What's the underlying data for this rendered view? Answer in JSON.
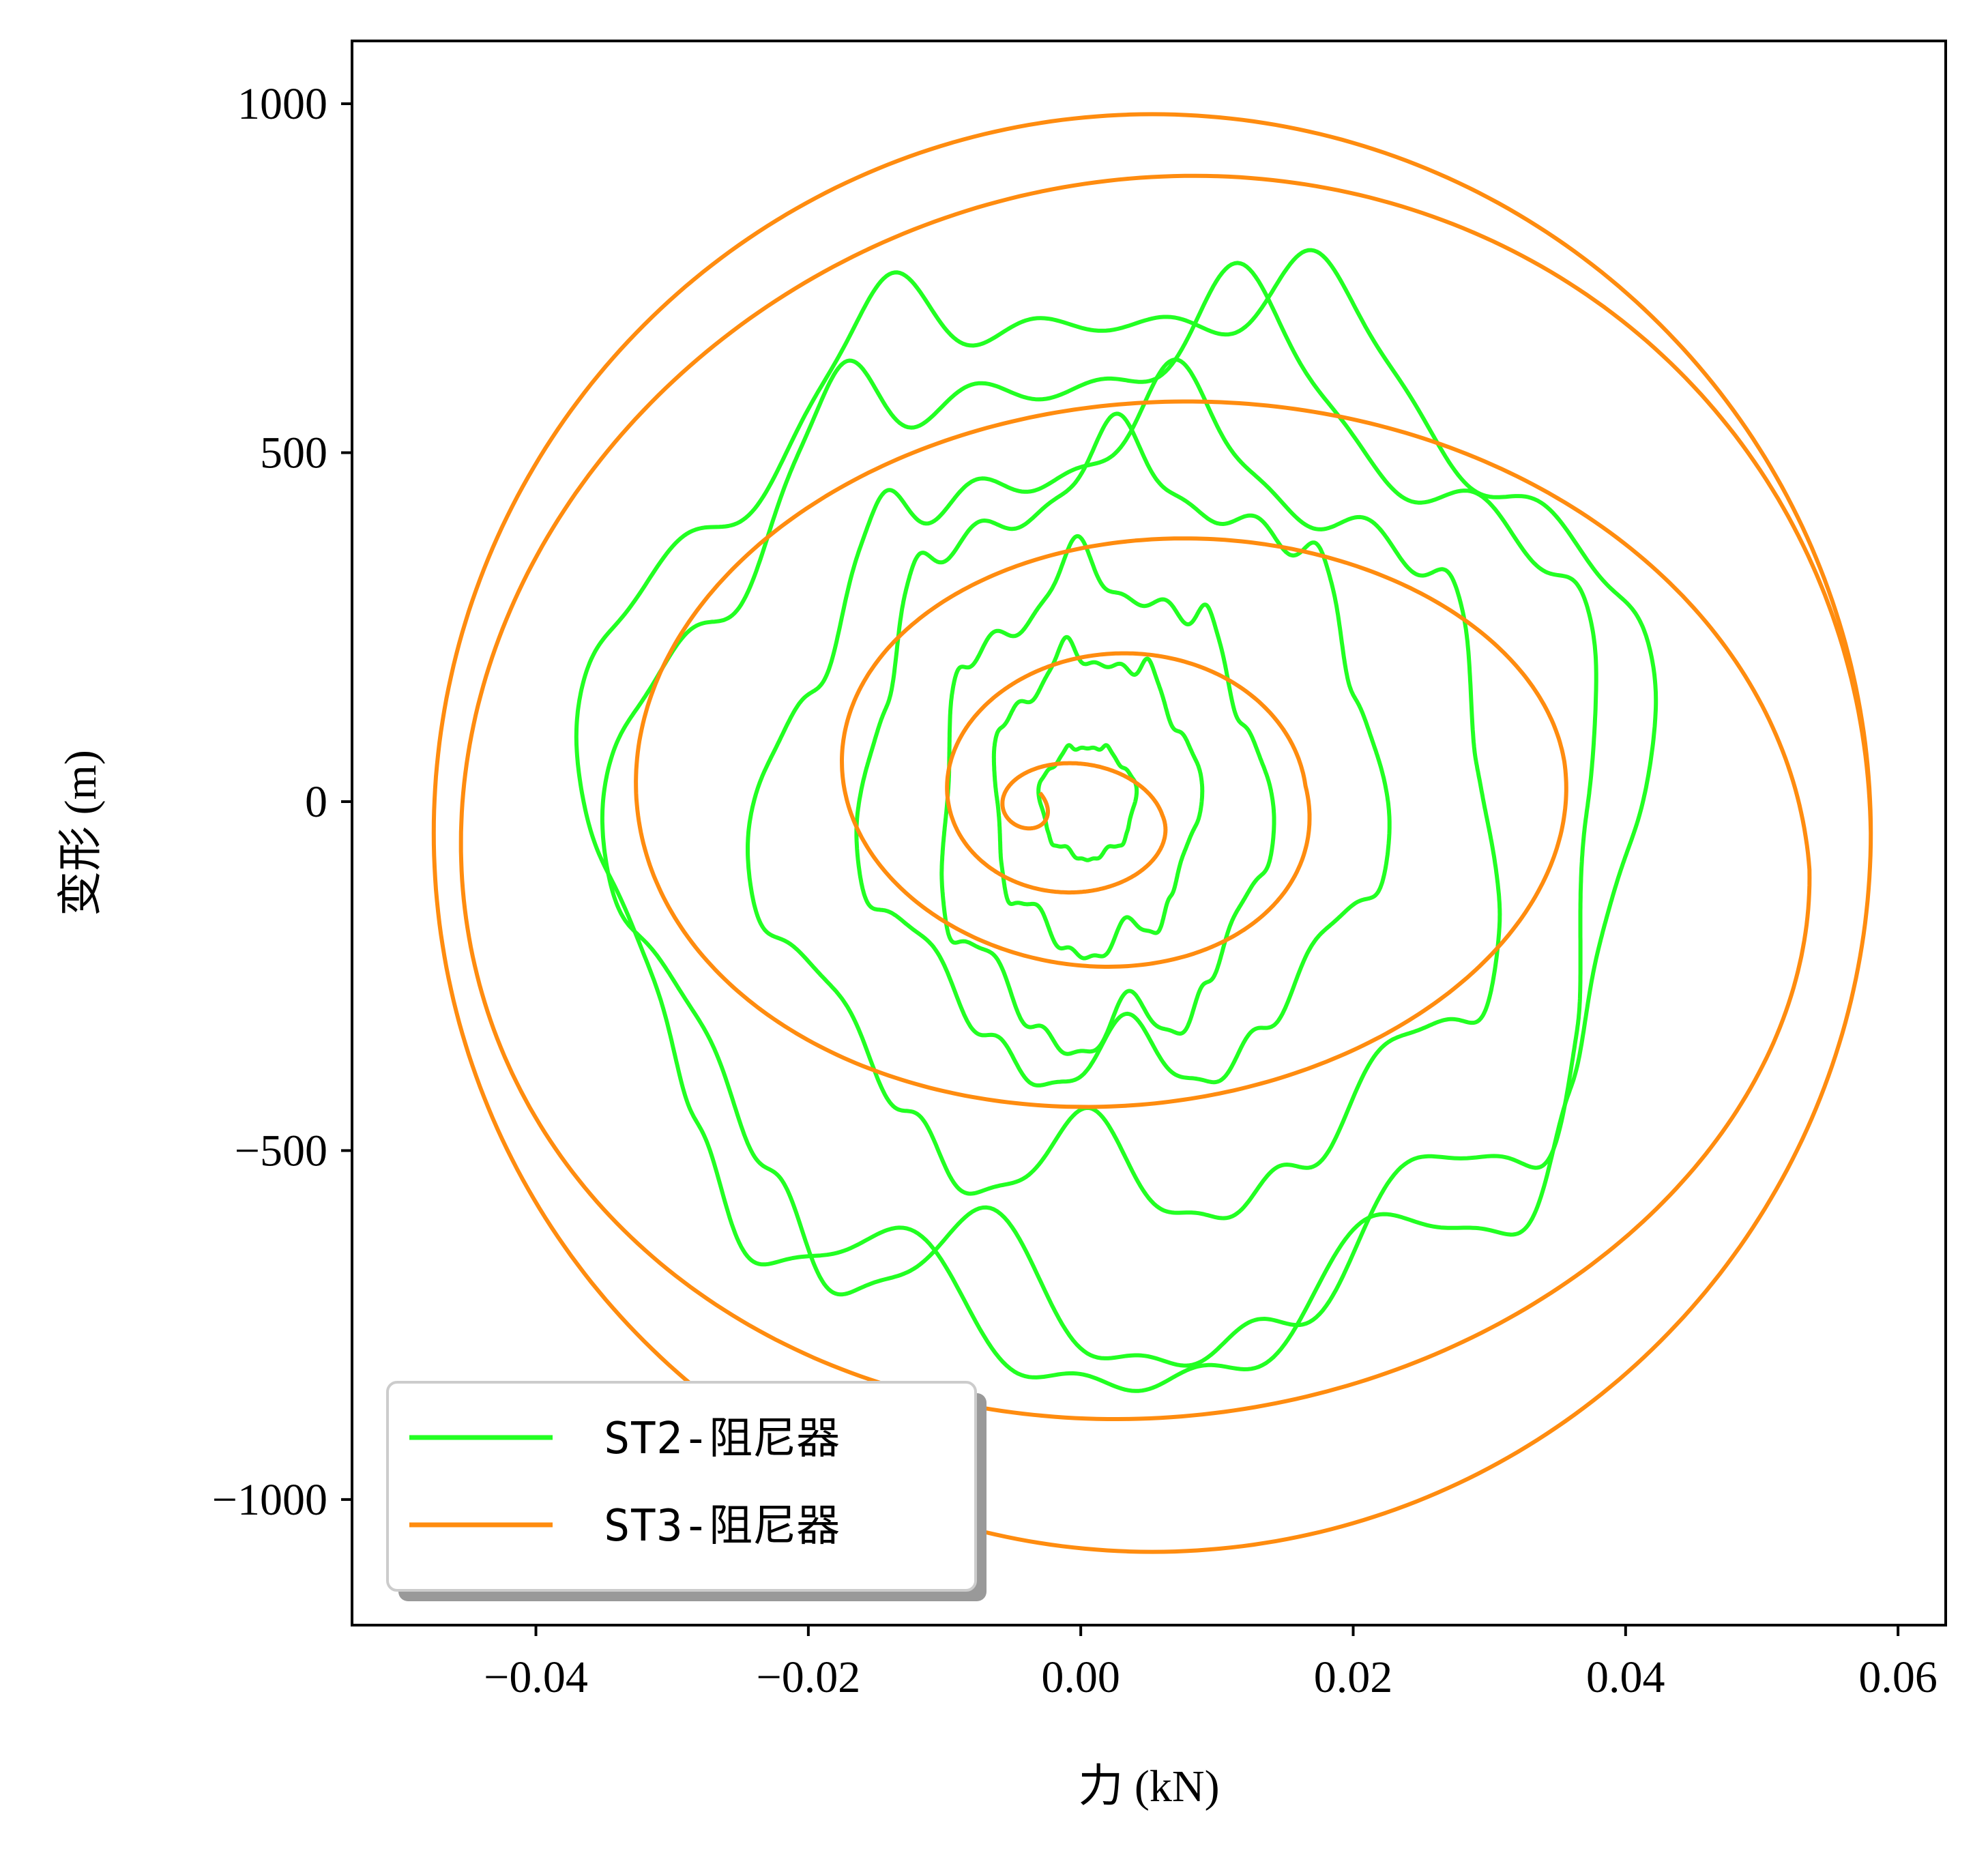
{
  "chart_data": {
    "type": "line",
    "xlabel": "力 (kN)",
    "ylabel": "变形 (m)",
    "xlim": [
      -0.0535,
      0.0635
    ],
    "ylim": [
      -1180,
      1090
    ],
    "xticks": [
      -0.04,
      -0.02,
      0.0,
      0.02,
      0.04,
      0.06
    ],
    "xtick_labels": [
      "−0.04",
      "−0.02",
      "0.00",
      "0.02",
      "0.04",
      "0.06"
    ],
    "yticks": [
      1000,
      500,
      0,
      -500,
      -1000
    ],
    "ytick_labels": [
      "1000",
      "500",
      "0",
      "−500",
      "−1000"
    ],
    "grid": false,
    "legend_position": "lower-left",
    "series": [
      {
        "name": "ST2-阻尼器",
        "color": "#22ff22",
        "style": "irregular wavy loops around origin",
        "loops": [
          {
            "cx": 0.0005,
            "cy": 0,
            "rx": 0.0035,
            "ry": 80,
            "wobble": 0.12
          },
          {
            "cx": 0.001,
            "cy": 0,
            "rx": 0.0075,
            "ry": 210,
            "wobble": 0.18
          },
          {
            "cx": 0.0015,
            "cy": -10,
            "rx": 0.012,
            "ry": 330,
            "wobble": 0.2
          },
          {
            "cx": 0.003,
            "cy": 40,
            "rx": 0.019,
            "ry": 430,
            "wobble": 0.2
          },
          {
            "cx": 0.004,
            "cy": -20,
            "rx": 0.027,
            "ry": 540,
            "wobble": 0.22
          },
          {
            "cx": 0.003,
            "cy": -50,
            "rx": 0.036,
            "ry": 700,
            "wobble": 0.22
          },
          {
            "cx": 0.003,
            "cy": -30,
            "rx": 0.0385,
            "ry": 760,
            "wobble": 0.18
          }
        ],
        "x_range": [
          -0.0355,
          0.0412
        ],
        "y_range": [
          -810,
          715
        ]
      },
      {
        "name": "ST3-阻尼器",
        "color": "#ff8c0f",
        "style": "outward spiral",
        "spiral_turns": [
          {
            "x_min": -0.0055,
            "x_max": -0.003,
            "y_min": -15,
            "y_max": 40
          },
          {
            "x_min": -0.006,
            "x_max": 0.006,
            "y_min": -100,
            "y_max": 60
          },
          {
            "x_min": -0.0135,
            "x_max": 0.0165,
            "y_min": -215,
            "y_max": 260
          },
          {
            "x_min": -0.0215,
            "x_max": 0.0355,
            "y_min": -300,
            "y_max": 415
          },
          {
            "x_min": -0.0435,
            "x_max": 0.0535,
            "y_min": -820,
            "y_max": 625
          },
          {
            "x_min": -0.0475,
            "x_max": 0.058,
            "y_min": -1075,
            "y_max": 985
          }
        ],
        "x_range": [
          -0.0475,
          0.058
        ],
        "y_range": [
          -1075,
          985
        ]
      }
    ]
  }
}
